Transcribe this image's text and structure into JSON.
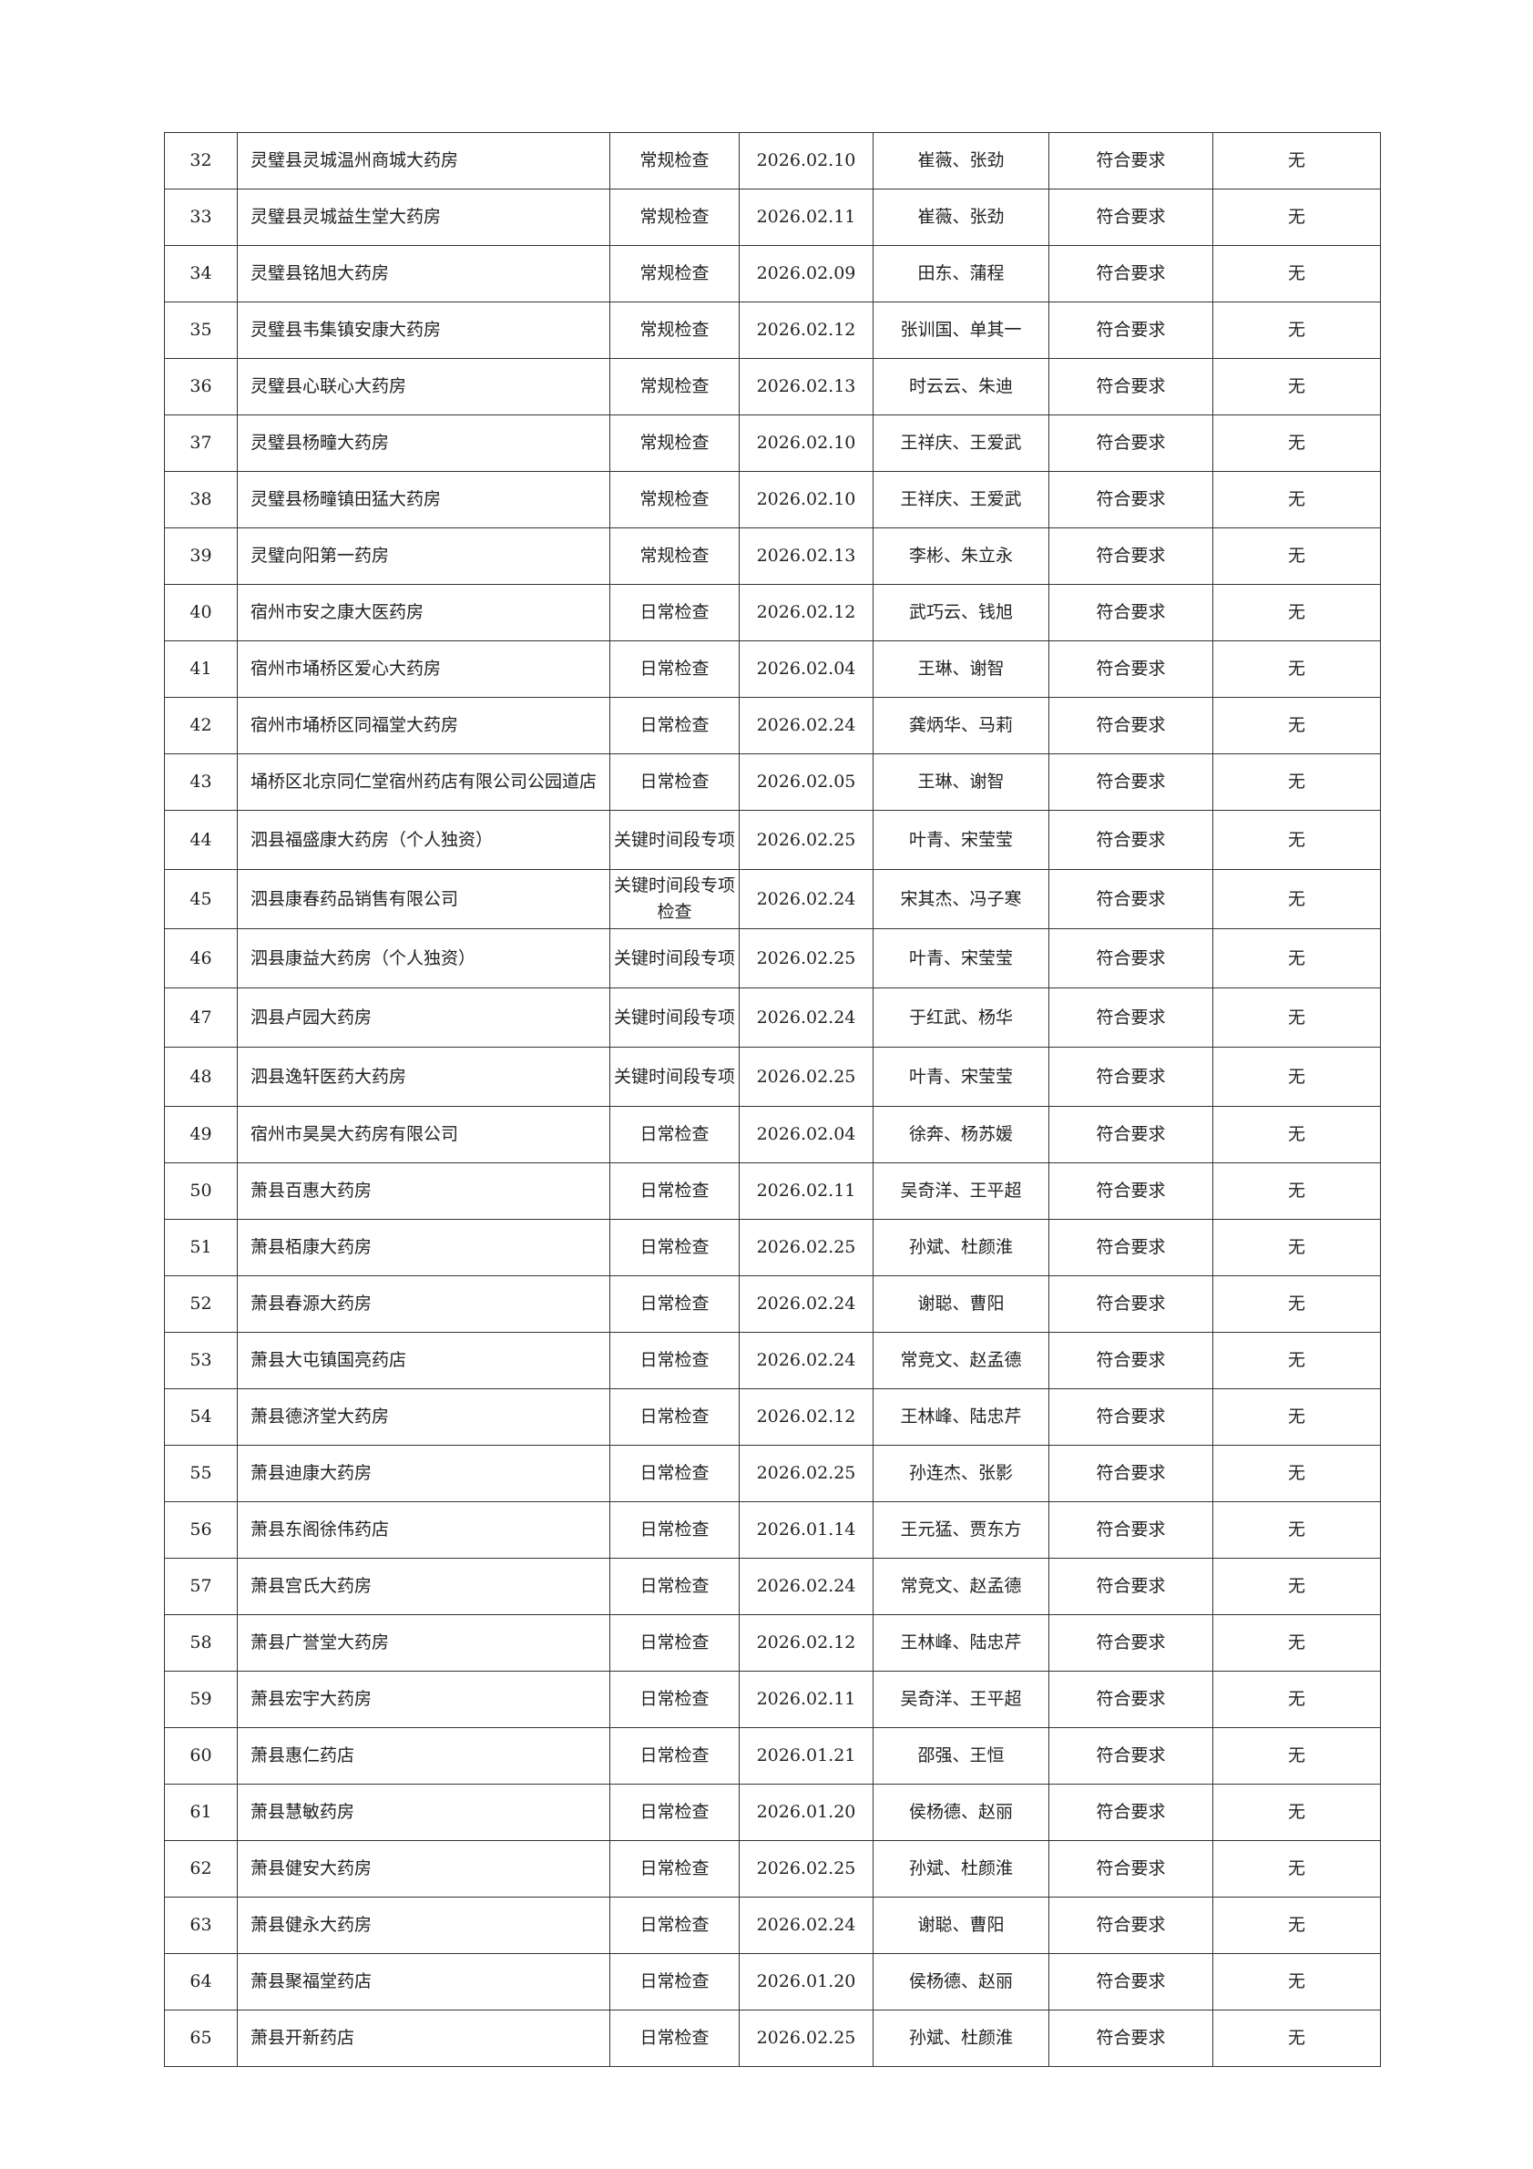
{
  "rows": [
    [
      "32",
      "灵璧县灵城温州商城大药房",
      "常规检查",
      "2026.02.10",
      "崔薇、张劲",
      "符合要求",
      "无"
    ],
    [
      "33",
      "灵璧县灵城益生堂大药房",
      "常规检查",
      "2026.02.11",
      "崔薇、张劲",
      "符合要求",
      "无"
    ],
    [
      "34",
      "灵璧县铭旭大药房",
      "常规检查",
      "2026.02.09",
      "田东、蒲程",
      "符合要求",
      "无"
    ],
    [
      "35",
      "灵璧县韦集镇安康大药房",
      "常规检查",
      "2026.02.12",
      "张训国、单其一",
      "符合要求",
      "无"
    ],
    [
      "36",
      "灵璧县心联心大药房",
      "常规检查",
      "2026.02.13",
      "时云云、朱迪",
      "符合要求",
      "无"
    ],
    [
      "37",
      "灵璧县杨疃大药房",
      "常规检查",
      "2026.02.10",
      "王祥庆、王爱武",
      "符合要求",
      "无"
    ],
    [
      "38",
      "灵璧县杨疃镇田猛大药房",
      "常规检查",
      "2026.02.10",
      "王祥庆、王爱武",
      "符合要求",
      "无"
    ],
    [
      "39",
      "灵璧向阳第一药房",
      "常规检查",
      "2026.02.13",
      "李彬、朱立永",
      "符合要求",
      "无"
    ],
    [
      "40",
      "宿州市安之康大医药房",
      "日常检查",
      "2026.02.12",
      "武巧云、钱旭",
      "符合要求",
      "无"
    ],
    [
      "41",
      "宿州市埇桥区爱心大药房",
      "日常检查",
      "2026.02.04",
      "王琳、谢智",
      "符合要求",
      "无"
    ],
    [
      "42",
      "宿州市埇桥区同福堂大药房",
      "日常检查",
      "2026.02.24",
      "龚炳华、马莉",
      "符合要求",
      "无"
    ],
    [
      "43",
      "埇桥区北京同仁堂宿州药店有限公司公园道店",
      "日常检查",
      "2026.02.05",
      "王琳、谢智",
      "符合要求",
      "无"
    ],
    [
      "44",
      "泗县福盛康大药房（个人独资）",
      "关键时间段专项",
      "2026.02.25",
      "叶青、宋莹莹",
      "符合要求",
      "无"
    ],
    [
      "45",
      "泗县康春药品销售有限公司",
      "关键时间段专项检查",
      "2026.02.24",
      "宋其杰、冯子寒",
      "符合要求",
      "无"
    ],
    [
      "46",
      "泗县康益大药房（个人独资）",
      "关键时间段专项",
      "2026.02.25",
      "叶青、宋莹莹",
      "符合要求",
      "无"
    ],
    [
      "47",
      "泗县卢园大药房",
      "关键时间段专项",
      "2026.02.24",
      "于红武、杨华",
      "符合要求",
      "无"
    ],
    [
      "48",
      "泗县逸轩医药大药房",
      "关键时间段专项",
      "2026.02.25",
      "叶青、宋莹莹",
      "符合要求",
      "无"
    ],
    [
      "49",
      "宿州市昊昊大药房有限公司",
      "日常检查",
      "2026.02.04",
      "徐奔、杨苏媛",
      "符合要求",
      "无"
    ],
    [
      "50",
      "萧县百惠大药房",
      "日常检查",
      "2026.02.11",
      "吴奇洋、王平超",
      "符合要求",
      "无"
    ],
    [
      "51",
      "萧县栢康大药房",
      "日常检查",
      "2026.02.25",
      "孙斌、杜颜淮",
      "符合要求",
      "无"
    ],
    [
      "52",
      "萧县春源大药房",
      "日常检查",
      "2026.02.24",
      "谢聪、曹阳",
      "符合要求",
      "无"
    ],
    [
      "53",
      "萧县大屯镇国亮药店",
      "日常检查",
      "2026.02.24",
      "常竞文、赵孟德",
      "符合要求",
      "无"
    ],
    [
      "54",
      "萧县德济堂大药房",
      "日常检查",
      "2026.02.12",
      "王林峰、陆忠芹",
      "符合要求",
      "无"
    ],
    [
      "55",
      "萧县迪康大药房",
      "日常检查",
      "2026.02.25",
      "孙连杰、张影",
      "符合要求",
      "无"
    ],
    [
      "56",
      "萧县东阁徐伟药店",
      "日常检查",
      "2026.01.14",
      "王元猛、贾东方",
      "符合要求",
      "无"
    ],
    [
      "57",
      "萧县宫氏大药房",
      "日常检查",
      "2026.02.24",
      "常竞文、赵孟德",
      "符合要求",
      "无"
    ],
    [
      "58",
      "萧县广誉堂大药房",
      "日常检查",
      "2026.02.12",
      "王林峰、陆忠芹",
      "符合要求",
      "无"
    ],
    [
      "59",
      "萧县宏宇大药房",
      "日常检查",
      "2026.02.11",
      "吴奇洋、王平超",
      "符合要求",
      "无"
    ],
    [
      "60",
      "萧县惠仁药店",
      "日常检查",
      "2026.01.21",
      "邵强、王恒",
      "符合要求",
      "无"
    ],
    [
      "61",
      "萧县慧敏药房",
      "日常检查",
      "2026.01.20",
      "侯杨德、赵丽",
      "符合要求",
      "无"
    ],
    [
      "62",
      "萧县健安大药房",
      "日常检查",
      "2026.02.25",
      "孙斌、杜颜淮",
      "符合要求",
      "无"
    ],
    [
      "63",
      "萧县健永大药房",
      "日常检查",
      "2026.02.24",
      "谢聪、曹阳",
      "符合要求",
      "无"
    ],
    [
      "64",
      "萧县聚福堂药店",
      "日常检查",
      "2026.01.20",
      "侯杨德、赵丽",
      "符合要求",
      "无"
    ],
    [
      "65",
      "萧县开新药店",
      "日常检查",
      "2026.02.25",
      "孙斌、杜颜淮",
      "符合要求",
      "无"
    ]
  ]
}
